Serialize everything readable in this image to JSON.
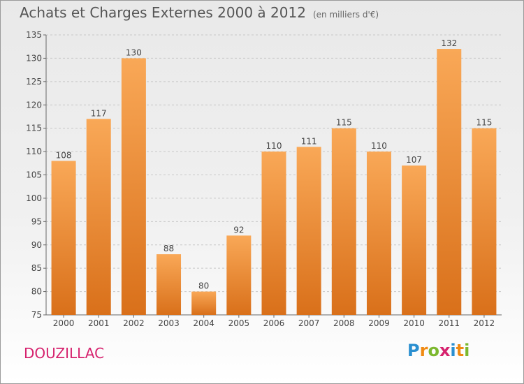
{
  "title": "Achats et Charges Externes 2000 à 2012",
  "subtitle": "(en milliers d'€)",
  "place": "DOUZILLAC",
  "logo": [
    "P",
    "r",
    "o",
    "x",
    "i",
    "t",
    "i"
  ],
  "colors": {
    "bar_top": "#f9a857",
    "bar_bottom": "#d9701a",
    "place": "#d6226e"
  },
  "chart_data": {
    "type": "bar",
    "categories": [
      "2000",
      "2001",
      "2002",
      "2003",
      "2004",
      "2005",
      "2006",
      "2007",
      "2008",
      "2009",
      "2010",
      "2011",
      "2012"
    ],
    "values": [
      108,
      117,
      130,
      88,
      80,
      92,
      110,
      111,
      115,
      110,
      107,
      132,
      115
    ],
    "ylim": [
      75,
      135
    ],
    "yticks": [
      75,
      80,
      85,
      90,
      95,
      100,
      105,
      110,
      115,
      120,
      125,
      130,
      135
    ],
    "grid": "horizontal dashed"
  }
}
